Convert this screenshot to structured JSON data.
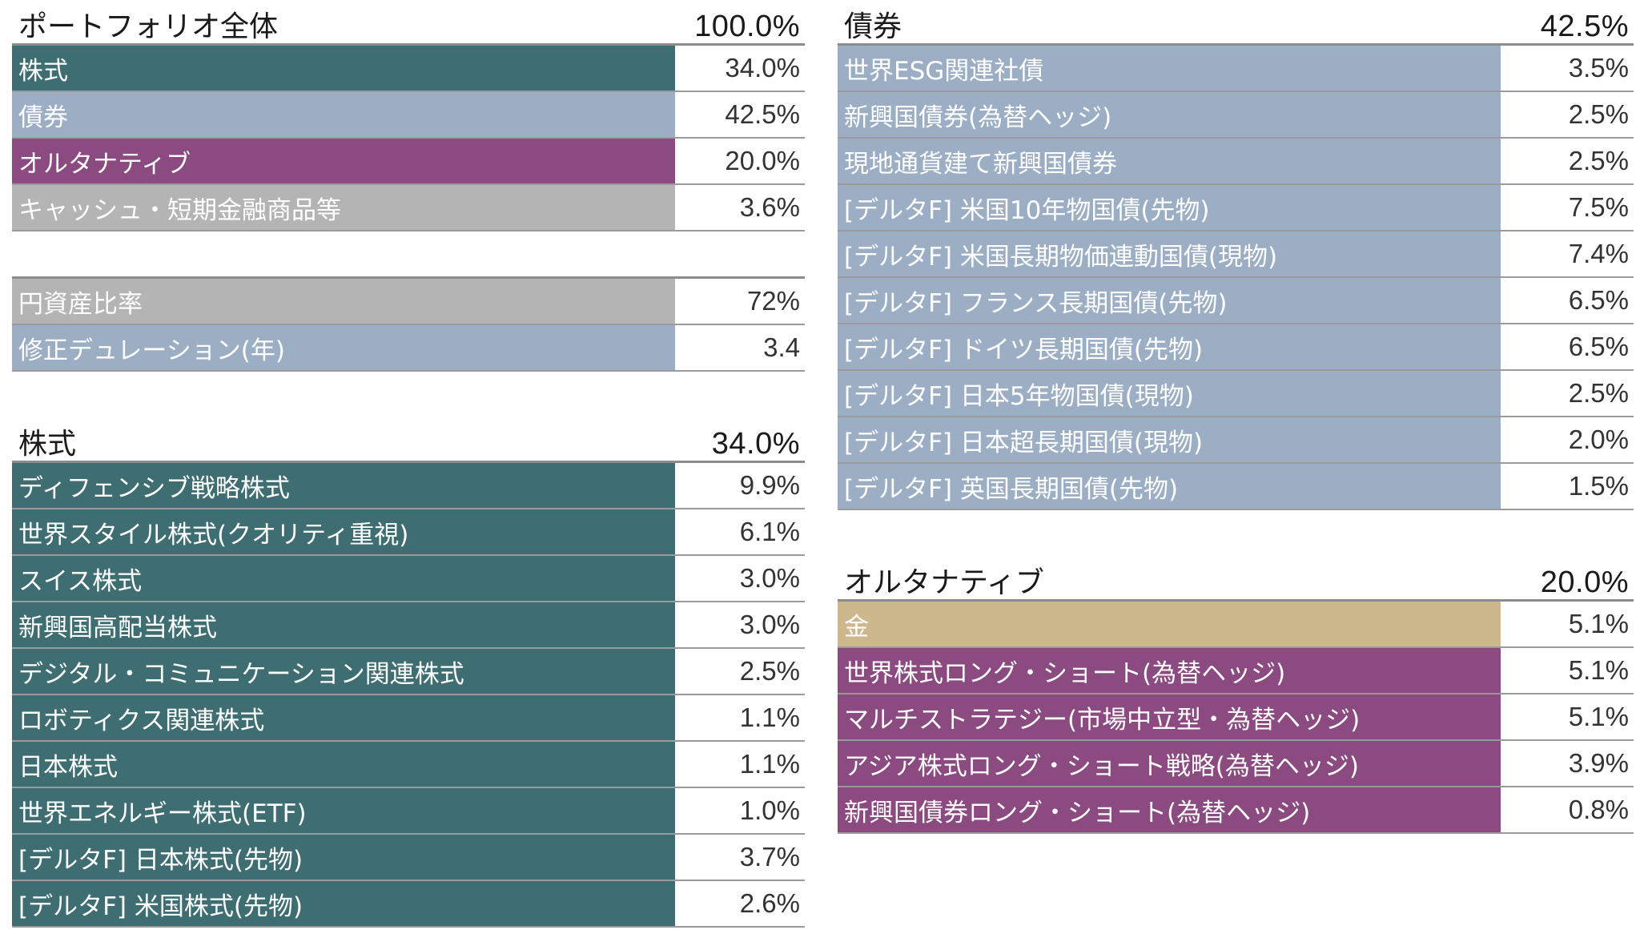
{
  "colors": {
    "equity": "#3f6e72",
    "bond": "#9caec4",
    "alternative": "#8b4a80",
    "cash": "#b4b4b4",
    "gold": "#cdb78c"
  },
  "portfolio": {
    "title": "ポートフォリオ全体",
    "total": "100.0%",
    "rows": [
      {
        "label": "株式",
        "value": "34.0%"
      },
      {
        "label": "債券",
        "value": "42.5%"
      },
      {
        "label": "オルタナティブ",
        "value": "20.0%"
      },
      {
        "label": "キャッシュ・短期金融商品等",
        "value": "3.6%"
      }
    ]
  },
  "metrics": {
    "rows": [
      {
        "label": "円資産比率",
        "value": "72%"
      },
      {
        "label": "修正デュレーション(年)",
        "value": "3.4"
      }
    ]
  },
  "equity": {
    "title": "株式",
    "total": "34.0%",
    "rows": [
      {
        "label": "ディフェンシブ戦略株式",
        "value": "9.9%"
      },
      {
        "label": "世界スタイル株式(クオリティ重視)",
        "value": "6.1%"
      },
      {
        "label": "スイス株式",
        "value": "3.0%"
      },
      {
        "label": "新興国高配当株式",
        "value": "3.0%"
      },
      {
        "label": "デジタル・コミュニケーション関連株式",
        "value": "2.5%"
      },
      {
        "label": "ロボティクス関連株式",
        "value": "1.1%"
      },
      {
        "label": "日本株式",
        "value": "1.1%"
      },
      {
        "label": "世界エネルギー株式(ETF)",
        "value": "1.0%"
      },
      {
        "label": "[デルタF] 日本株式(先物)",
        "value": "3.7%"
      },
      {
        "label": "[デルタF] 米国株式(先物)",
        "value": "2.6%"
      }
    ]
  },
  "bonds": {
    "title": "債券",
    "total": "42.5%",
    "rows": [
      {
        "label": "世界ESG関連社債",
        "value": "3.5%"
      },
      {
        "label": "新興国債券(為替ヘッジ)",
        "value": "2.5%"
      },
      {
        "label": "現地通貨建て新興国債券",
        "value": "2.5%"
      },
      {
        "label": "[デルタF] 米国10年物国債(先物)",
        "value": "7.5%"
      },
      {
        "label": "[デルタF] 米国長期物価連動国債(現物)",
        "value": "7.4%"
      },
      {
        "label": "[デルタF] フランス長期国債(先物)",
        "value": "6.5%"
      },
      {
        "label": "[デルタF] ドイツ長期国債(先物)",
        "value": "6.5%"
      },
      {
        "label": "[デルタF] 日本5年物国債(現物)",
        "value": "2.5%"
      },
      {
        "label": "[デルタF] 日本超長期国債(現物)",
        "value": "2.0%"
      },
      {
        "label": "[デルタF] 英国長期国債(先物)",
        "value": "1.5%"
      }
    ]
  },
  "alternatives": {
    "title": "オルタナティブ",
    "total": "20.0%",
    "rows": [
      {
        "label": "金",
        "value": "5.1%"
      },
      {
        "label": "世界株式ロング・ショート(為替ヘッジ)",
        "value": "5.1%"
      },
      {
        "label": "マルチストラテジー(市場中立型・為替ヘッジ)",
        "value": "5.1%"
      },
      {
        "label": "アジア株式ロング・ショート戦略(為替ヘッジ)",
        "value": "3.9%"
      },
      {
        "label": "新興国債券ロング・ショート(為替ヘッジ)",
        "value": "0.8%"
      }
    ]
  }
}
